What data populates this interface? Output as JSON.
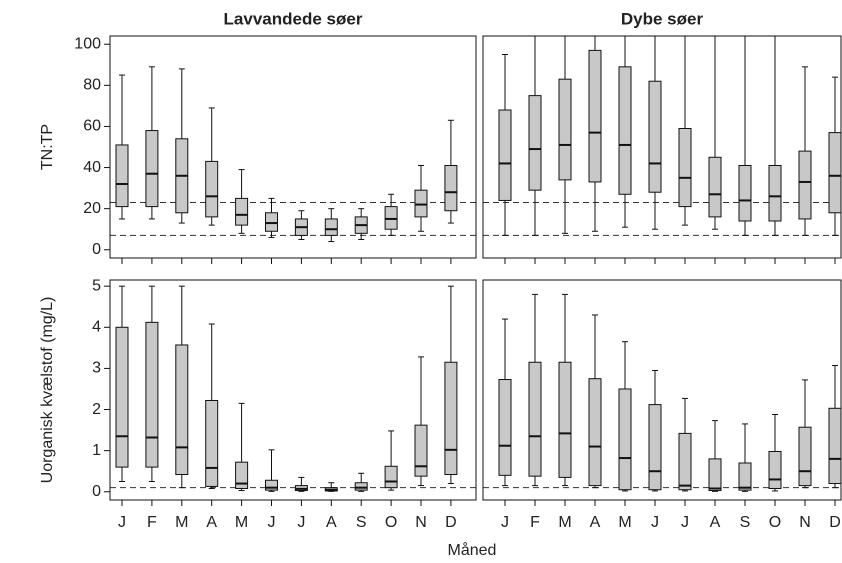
{
  "chart_data": [
    {
      "type": "box",
      "title": "Lavvandede søer",
      "ylabel": "TN:TP",
      "color": "#c8c8c8",
      "ylim": [
        -4,
        104
      ],
      "yticks": [
        0,
        20,
        40,
        60,
        80,
        100
      ],
      "hlines": [
        23,
        7
      ],
      "boxes": [
        {
          "low": 15,
          "q1": 21,
          "median": 32,
          "q3": 51,
          "high": 85
        },
        {
          "low": 15,
          "q1": 21,
          "median": 37,
          "q3": 58,
          "high": 89
        },
        {
          "low": 13,
          "q1": 18,
          "median": 36,
          "q3": 54,
          "high": 88
        },
        {
          "low": 12,
          "q1": 16,
          "median": 26,
          "q3": 43,
          "high": 69
        },
        {
          "low": 8,
          "q1": 12,
          "median": 17,
          "q3": 25,
          "high": 39
        },
        {
          "low": 6,
          "q1": 9,
          "median": 13,
          "q3": 18,
          "high": 25
        },
        {
          "low": 5,
          "q1": 7,
          "median": 11,
          "q3": 15,
          "high": 19
        },
        {
          "low": 4,
          "q1": 7,
          "median": 10,
          "q3": 15,
          "high": 20
        },
        {
          "low": 5,
          "q1": 8,
          "median": 12,
          "q3": 16,
          "high": 20
        },
        {
          "low": 7,
          "q1": 10,
          "median": 15,
          "q3": 21,
          "high": 27
        },
        {
          "low": 9,
          "q1": 16,
          "median": 22,
          "q3": 29,
          "high": 41
        },
        {
          "low": 13,
          "q1": 19,
          "median": 28,
          "q3": 41,
          "high": 63
        }
      ]
    },
    {
      "type": "box",
      "title": "Dybe søer",
      "color": "#c8c8c8",
      "ylim": [
        -4,
        104
      ],
      "hlines": [
        23,
        7
      ],
      "boxes": [
        {
          "low": 7,
          "q1": 24,
          "median": 42,
          "q3": 68,
          "high": 95
        },
        {
          "low": 7,
          "q1": 29,
          "median": 49,
          "q3": 75,
          "high": 104
        },
        {
          "low": 8,
          "q1": 34,
          "median": 51,
          "q3": 83,
          "high": 104
        },
        {
          "low": 9,
          "q1": 33,
          "median": 57,
          "q3": 97,
          "high": 104
        },
        {
          "low": 11,
          "q1": 27,
          "median": 51,
          "q3": 89,
          "high": 104
        },
        {
          "low": 10,
          "q1": 28,
          "median": 42,
          "q3": 82,
          "high": 104
        },
        {
          "low": 12,
          "q1": 21,
          "median": 35,
          "q3": 59,
          "high": 104
        },
        {
          "low": 10,
          "q1": 16,
          "median": 27,
          "q3": 45,
          "high": 104
        },
        {
          "low": 7,
          "q1": 14,
          "median": 24,
          "q3": 41,
          "high": 104
        },
        {
          "low": 7,
          "q1": 14,
          "median": 26,
          "q3": 41,
          "high": 104
        },
        {
          "low": 7,
          "q1": 15,
          "median": 33,
          "q3": 48,
          "high": 89
        },
        {
          "low": 7,
          "q1": 18,
          "median": 36,
          "q3": 57,
          "high": 84
        }
      ]
    },
    {
      "type": "box",
      "ylabel": "Uorganisk kvælstof (mg/L)",
      "xlabel": "Måned",
      "color": "#c8c8c8",
      "ylim": [
        -0.2,
        5.15
      ],
      "yticks": [
        0,
        1,
        2,
        3,
        4,
        5
      ],
      "hlines": [
        0.1
      ],
      "categories": [
        "J",
        "F",
        "M",
        "A",
        "M",
        "J",
        "J",
        "A",
        "S",
        "O",
        "N",
        "D"
      ],
      "boxes": [
        {
          "low": 0.25,
          "q1": 0.6,
          "median": 1.35,
          "q3": 4.0,
          "high": 5.0
        },
        {
          "low": 0.25,
          "q1": 0.6,
          "median": 1.32,
          "q3": 4.12,
          "high": 5.0
        },
        {
          "low": 0.1,
          "q1": 0.42,
          "median": 1.08,
          "q3": 3.57,
          "high": 5.0
        },
        {
          "low": 0.08,
          "q1": 0.13,
          "median": 0.58,
          "q3": 2.22,
          "high": 4.08
        },
        {
          "low": 0.03,
          "q1": 0.08,
          "median": 0.2,
          "q3": 0.72,
          "high": 2.15
        },
        {
          "low": 0.01,
          "q1": 0.04,
          "median": 0.1,
          "q3": 0.28,
          "high": 1.02
        },
        {
          "low": 0.01,
          "q1": 0.03,
          "median": 0.07,
          "q3": 0.15,
          "high": 0.35
        },
        {
          "low": 0.01,
          "q1": 0.02,
          "median": 0.05,
          "q3": 0.1,
          "high": 0.22
        },
        {
          "low": 0.01,
          "q1": 0.04,
          "median": 0.1,
          "q3": 0.22,
          "high": 0.45
        },
        {
          "low": 0.04,
          "q1": 0.1,
          "median": 0.25,
          "q3": 0.62,
          "high": 1.48
        },
        {
          "low": 0.15,
          "q1": 0.38,
          "median": 0.62,
          "q3": 1.62,
          "high": 3.28
        },
        {
          "low": 0.2,
          "q1": 0.42,
          "median": 1.02,
          "q3": 3.15,
          "high": 5.0
        }
      ]
    },
    {
      "type": "box",
      "color": "#c8c8c8",
      "ylim": [
        -0.2,
        5.15
      ],
      "hlines": [
        0.1
      ],
      "categories": [
        "J",
        "F",
        "M",
        "A",
        "M",
        "J",
        "J",
        "A",
        "S",
        "O",
        "N",
        "D"
      ],
      "boxes": [
        {
          "low": 0.15,
          "q1": 0.4,
          "median": 1.12,
          "q3": 2.73,
          "high": 4.2
        },
        {
          "low": 0.15,
          "q1": 0.38,
          "median": 1.35,
          "q3": 3.15,
          "high": 4.8
        },
        {
          "low": 0.15,
          "q1": 0.35,
          "median": 1.42,
          "q3": 3.15,
          "high": 4.8
        },
        {
          "low": 0.1,
          "q1": 0.15,
          "median": 1.1,
          "q3": 2.75,
          "high": 4.3
        },
        {
          "low": 0.02,
          "q1": 0.05,
          "median": 0.82,
          "q3": 2.5,
          "high": 3.65
        },
        {
          "low": 0.02,
          "q1": 0.05,
          "median": 0.5,
          "q3": 2.12,
          "high": 2.95
        },
        {
          "low": 0.02,
          "q1": 0.05,
          "median": 0.15,
          "q3": 1.42,
          "high": 2.27
        },
        {
          "low": 0.01,
          "q1": 0.03,
          "median": 0.08,
          "q3": 0.8,
          "high": 1.73
        },
        {
          "low": 0.01,
          "q1": 0.04,
          "median": 0.1,
          "q3": 0.7,
          "high": 1.65
        },
        {
          "low": 0.02,
          "q1": 0.08,
          "median": 0.3,
          "q3": 0.98,
          "high": 1.88
        },
        {
          "low": 0.1,
          "q1": 0.15,
          "median": 0.5,
          "q3": 1.57,
          "high": 2.72
        },
        {
          "low": 0.1,
          "q1": 0.2,
          "median": 0.8,
          "q3": 2.03,
          "high": 3.07
        }
      ]
    }
  ]
}
